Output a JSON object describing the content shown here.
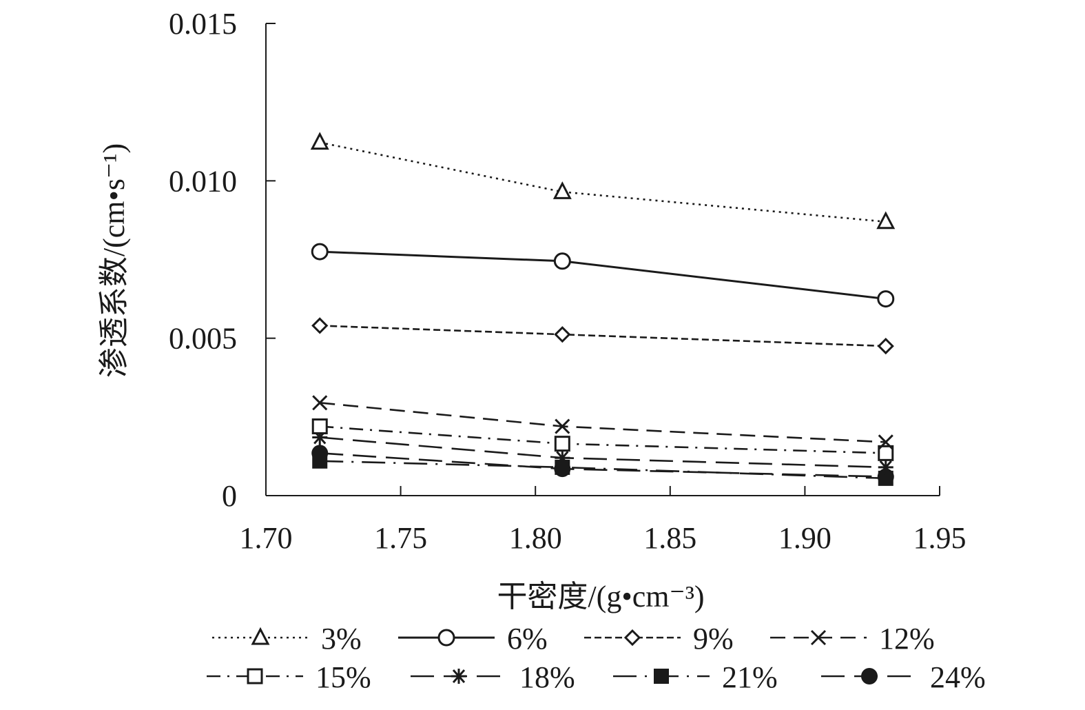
{
  "chart_data": {
    "type": "line",
    "title": "",
    "xlabel": "干密度/(g•cm⁻³)",
    "ylabel": "渗透系数/(cm•s⁻¹)",
    "x": [
      1.72,
      1.81,
      1.93
    ],
    "xlim": [
      1.7,
      1.95
    ],
    "ylim": [
      0,
      0.015
    ],
    "x_ticks": [
      "1.70",
      "1.75",
      "1.80",
      "1.85",
      "1.90",
      "1.95"
    ],
    "y_ticks": [
      "0",
      "0.005",
      "0.010",
      "0.015"
    ],
    "grid": false,
    "legend_position": "bottom",
    "series": [
      {
        "name": "3%",
        "values": [
          0.01122,
          0.00965,
          0.0087
        ],
        "marker": "triangle",
        "dash": "dotted"
      },
      {
        "name": "6%",
        "values": [
          0.00775,
          0.00745,
          0.00625
        ],
        "marker": "circle-open",
        "dash": "solid"
      },
      {
        "name": "9%",
        "values": [
          0.0054,
          0.00512,
          0.00475
        ],
        "marker": "diamond",
        "dash": "short-dash"
      },
      {
        "name": "12%",
        "values": [
          0.00295,
          0.0022,
          0.0017
        ],
        "marker": "x",
        "dash": "dash"
      },
      {
        "name": "15%",
        "values": [
          0.0022,
          0.00165,
          0.00135
        ],
        "marker": "square-open",
        "dash": "dash-dot"
      },
      {
        "name": "18%",
        "values": [
          0.00185,
          0.0012,
          0.0009
        ],
        "marker": "asterisk",
        "dash": "long-dash"
      },
      {
        "name": "21%",
        "values": [
          0.0011,
          0.0009,
          0.00055
        ],
        "marker": "square-filled",
        "dash": "long-dash-dot"
      },
      {
        "name": "24%",
        "values": [
          0.00135,
          0.00085,
          0.0006
        ],
        "marker": "circle-filled",
        "dash": "long-dash"
      }
    ]
  }
}
